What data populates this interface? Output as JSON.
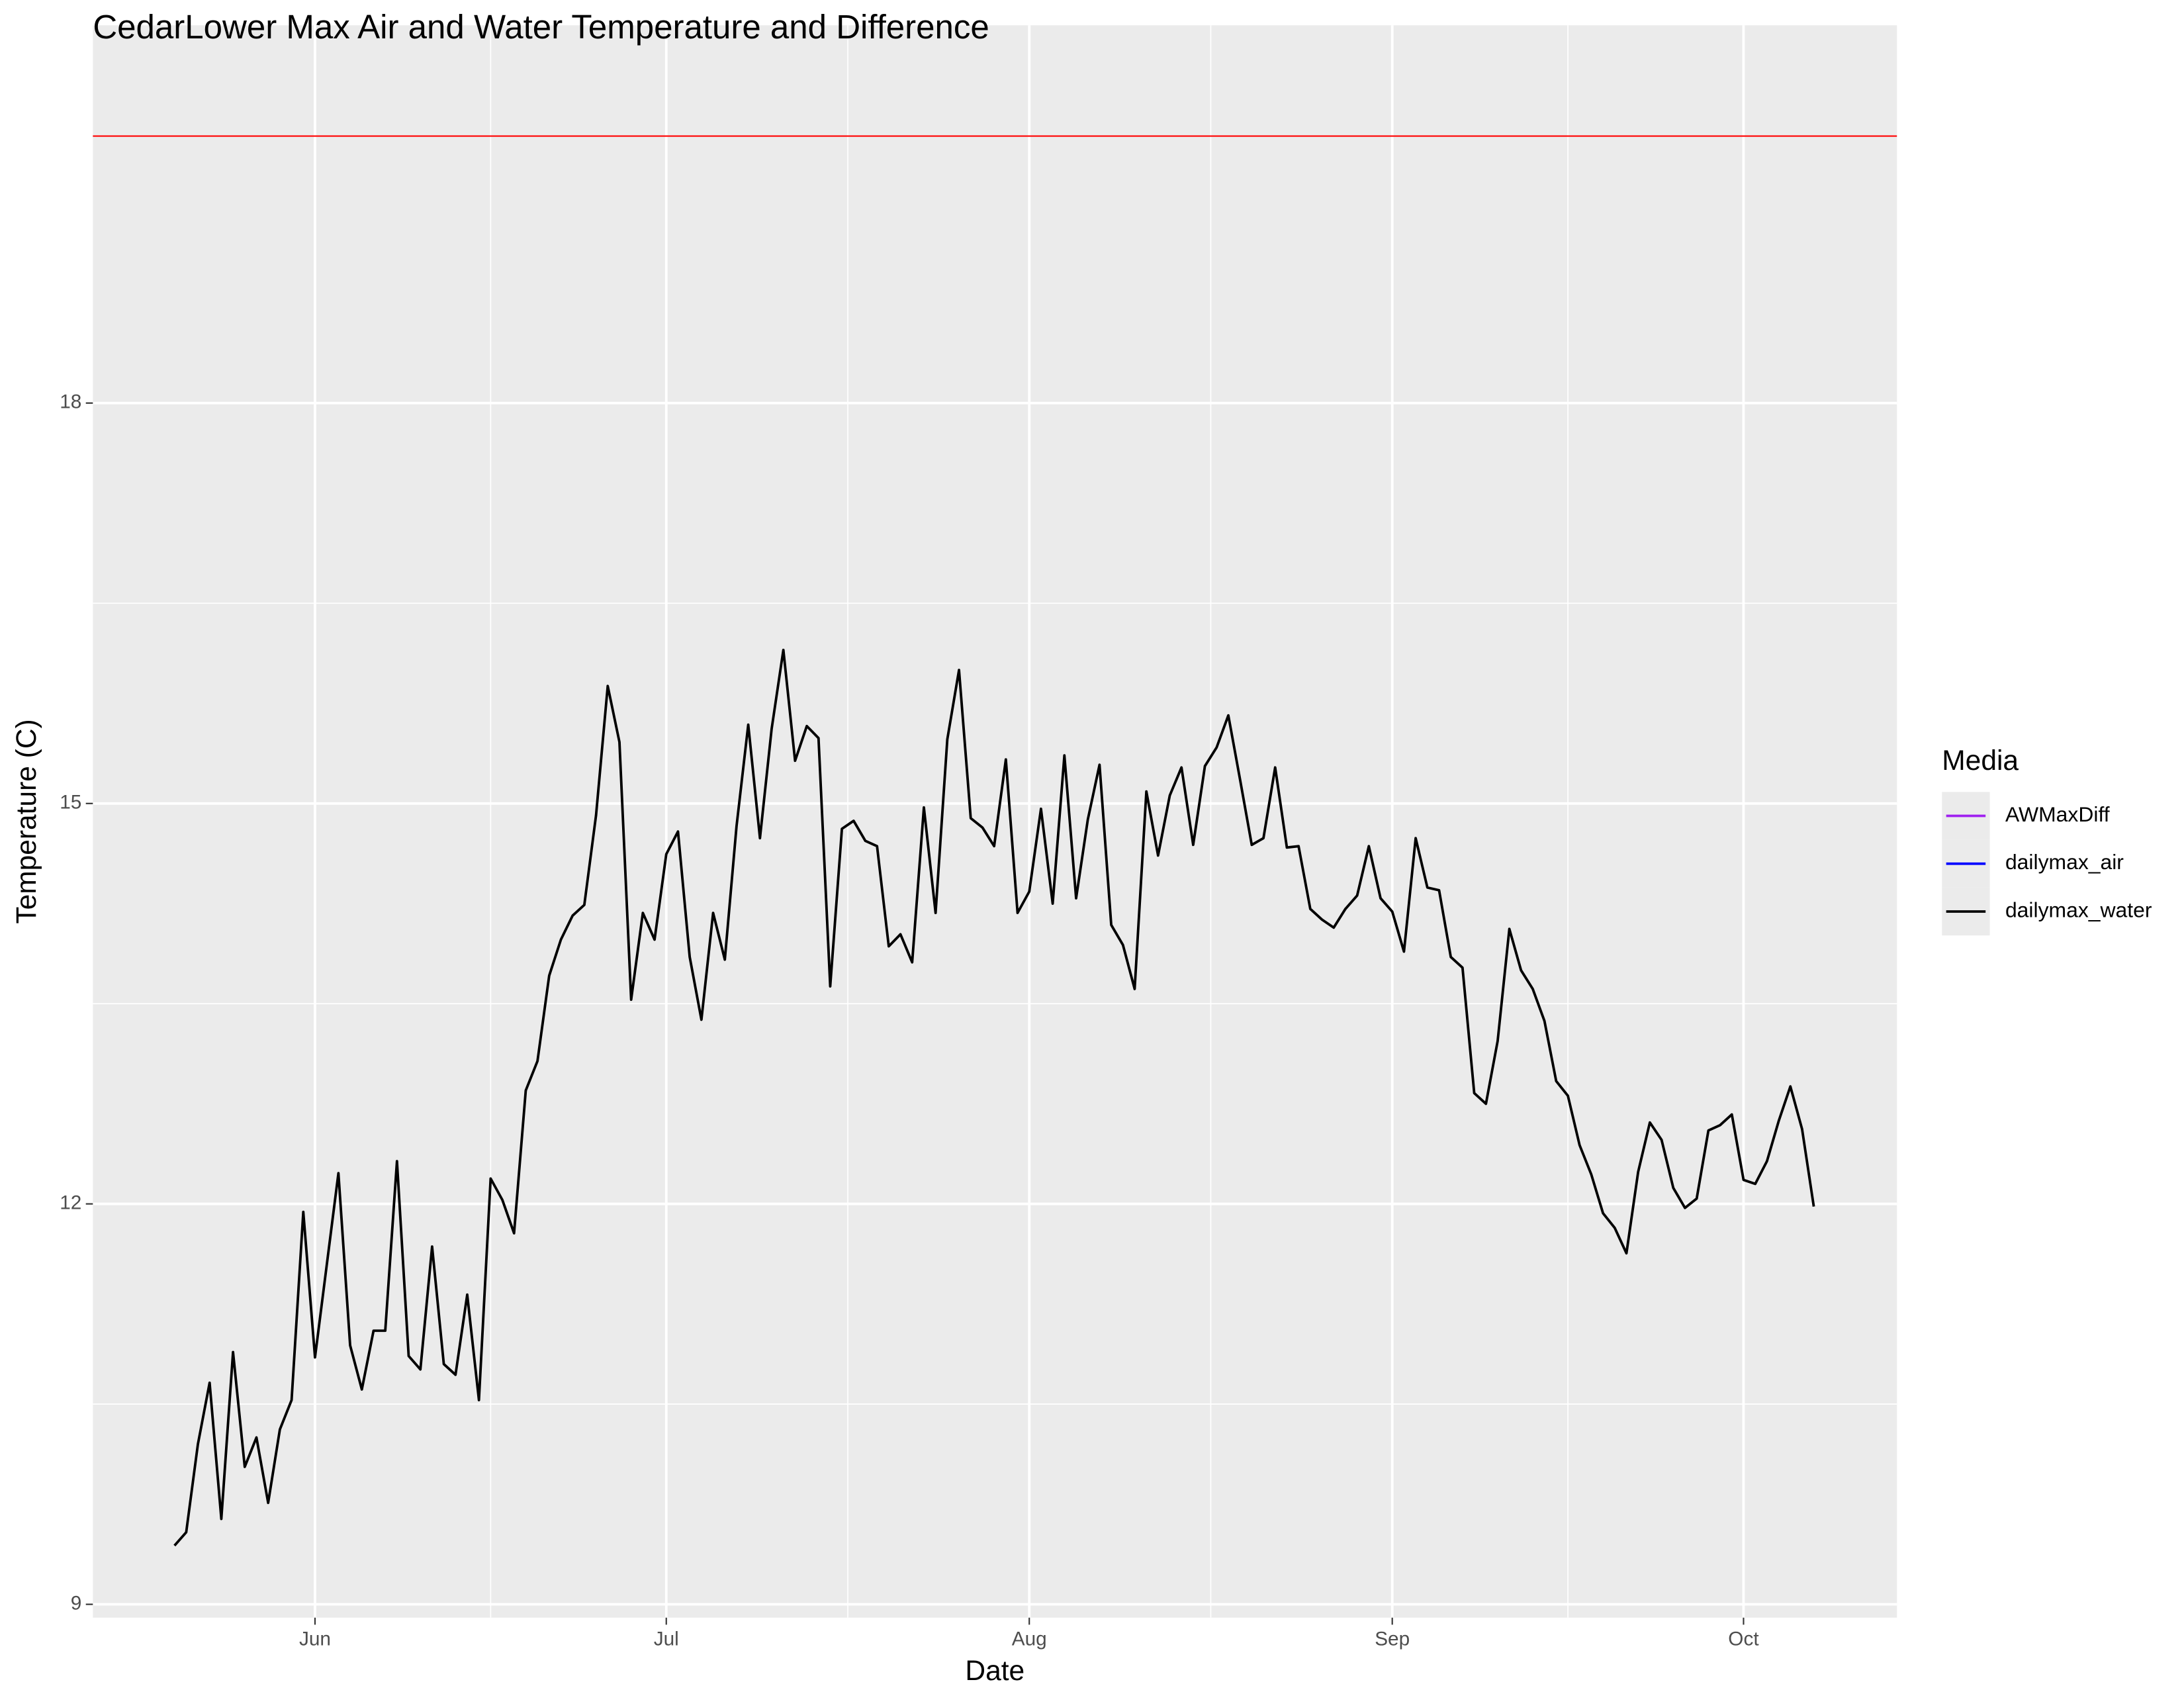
{
  "chart_data": {
    "type": "line",
    "title": "CedarLower Max Air and Water Temperature and Difference",
    "x_label": "Date",
    "y_label": "Temperature (C)",
    "legend_title": "Media",
    "legend_position": "right",
    "grid": true,
    "xlim": [
      -6.97,
      147.1
    ],
    "xticks": [
      {
        "value": 12,
        "label": "Jun"
      },
      {
        "value": 42,
        "label": "Jul"
      },
      {
        "value": 73,
        "label": "Aug"
      },
      {
        "value": 104,
        "label": "Sep"
      },
      {
        "value": 134,
        "label": "Oct"
      }
    ],
    "ylim": [
      8.9,
      20.83
    ],
    "yticks": [
      9,
      12,
      15,
      18
    ],
    "reference_line": 20,
    "reference_color": "#ff0000",
    "series": [
      {
        "name": "AWMaxDiff",
        "color": "#a020f0",
        "values": [
          null,
          null,
          null,
          null,
          null,
          null,
          null,
          null,
          null,
          null,
          null,
          null,
          null,
          null,
          null,
          null,
          null,
          null,
          null,
          null,
          null,
          null,
          null,
          null,
          null,
          null,
          null,
          null,
          null,
          null,
          null,
          null,
          null,
          null,
          null,
          null,
          null,
          null,
          null,
          null,
          null,
          null,
          null,
          null,
          null,
          null,
          null,
          null,
          null,
          null,
          null,
          null,
          null,
          null,
          null,
          null,
          null,
          null,
          null,
          null,
          null,
          null,
          null,
          null,
          null,
          null,
          null,
          null,
          null,
          null,
          null,
          null,
          null,
          null,
          null,
          null,
          null,
          null,
          null,
          null,
          null,
          null,
          null,
          null,
          null,
          null,
          null,
          null,
          null,
          null,
          null,
          null,
          null,
          null,
          null,
          null,
          null,
          null,
          null,
          null,
          null,
          null,
          null,
          null,
          null,
          null,
          null,
          null,
          null,
          null,
          null,
          null,
          null,
          null,
          null,
          null,
          null,
          null,
          null,
          null,
          null,
          null,
          null,
          null,
          null,
          null,
          null,
          null,
          null,
          null,
          null,
          null,
          null,
          null,
          null,
          null,
          null,
          null,
          null,
          null,
          null
        ]
      },
      {
        "name": "dailymax_air",
        "color": "#0000ff",
        "values": [
          null,
          null,
          null,
          null,
          null,
          null,
          null,
          null,
          null,
          null,
          null,
          null,
          null,
          null,
          null,
          null,
          null,
          null,
          null,
          null,
          null,
          null,
          null,
          null,
          null,
          null,
          null,
          null,
          null,
          null,
          null,
          null,
          null,
          null,
          null,
          null,
          null,
          null,
          null,
          null,
          null,
          null,
          null,
          null,
          null,
          null,
          null,
          null,
          null,
          null,
          null,
          null,
          null,
          null,
          null,
          null,
          null,
          null,
          null,
          null,
          null,
          null,
          null,
          null,
          null,
          null,
          null,
          null,
          null,
          null,
          null,
          null,
          null,
          null,
          null,
          null,
          null,
          null,
          null,
          null,
          null,
          null,
          null,
          null,
          null,
          null,
          null,
          null,
          null,
          null,
          null,
          null,
          null,
          null,
          null,
          null,
          null,
          null,
          null,
          null,
          null,
          null,
          null,
          null,
          null,
          null,
          null,
          null,
          null,
          null,
          null,
          null,
          null,
          null,
          null,
          null,
          null,
          null,
          null,
          null,
          null,
          null,
          null,
          null,
          null,
          null,
          null,
          null,
          null,
          null,
          null,
          null,
          null,
          null,
          null,
          null,
          null,
          null,
          null,
          null,
          null
        ]
      },
      {
        "name": "dailymax_water",
        "color": "#000000",
        "values": [
          9.44,
          9.54,
          10.2,
          10.66,
          9.64,
          10.89,
          10.03,
          10.25,
          9.76,
          10.31,
          10.53,
          11.94,
          10.85,
          11.54,
          12.23,
          10.94,
          10.61,
          11.05,
          11.05,
          12.32,
          10.86,
          10.76,
          11.68,
          10.8,
          10.72,
          11.32,
          10.53,
          12.19,
          12.03,
          11.78,
          12.85,
          13.07,
          13.71,
          13.98,
          14.16,
          14.24,
          14.91,
          15.88,
          15.46,
          13.53,
          14.18,
          13.98,
          14.62,
          14.79,
          13.85,
          13.38,
          14.18,
          13.83,
          14.83,
          15.59,
          14.74,
          15.56,
          16.15,
          15.32,
          15.58,
          15.49,
          13.63,
          14.81,
          14.87,
          14.72,
          14.68,
          13.93,
          14.02,
          13.81,
          14.97,
          14.18,
          15.48,
          16.0,
          14.89,
          14.82,
          14.68,
          15.33,
          14.18,
          14.34,
          14.96,
          14.25,
          15.36,
          14.29,
          14.88,
          15.29,
          14.09,
          13.94,
          13.61,
          15.09,
          14.61,
          15.06,
          15.27,
          14.69,
          15.28,
          15.42,
          15.66,
          15.18,
          14.69,
          14.74,
          15.27,
          14.67,
          14.68,
          14.21,
          14.13,
          14.07,
          14.21,
          14.31,
          14.68,
          14.29,
          14.19,
          13.89,
          14.74,
          14.37,
          14.35,
          13.85,
          13.77,
          12.83,
          12.75,
          13.22,
          14.06,
          13.75,
          13.61,
          13.37,
          12.92,
          12.81,
          12.44,
          12.22,
          11.93,
          11.82,
          11.63,
          12.24,
          12.61,
          12.48,
          12.12,
          11.97,
          12.04,
          12.55,
          12.59,
          12.67,
          12.18,
          12.15,
          12.32,
          12.62,
          12.88,
          12.56,
          11.98
        ]
      }
    ]
  }
}
